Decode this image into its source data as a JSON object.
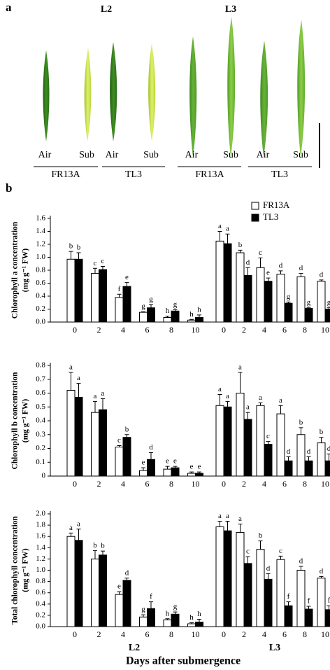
{
  "panel_a": {
    "label": "a",
    "leaf_groups": [
      "L2",
      "L3"
    ],
    "conditions": [
      "Air",
      "Sub",
      "Air",
      "Sub",
      "Air",
      "Sub",
      "Air",
      "Sub"
    ],
    "cultivars": [
      "FR13A",
      "TL3",
      "FR13A",
      "TL3"
    ]
  },
  "panel_b_label": "b",
  "chart_data": [
    {
      "type": "bar",
      "ylabel": [
        "Chlorophyll a concentration",
        "(mg g⁻¹ FW)"
      ],
      "categories": [
        "0",
        "2",
        "4",
        "6",
        "8",
        "10",
        "0",
        "2",
        "4",
        "6",
        "8",
        "10"
      ],
      "ylim": [
        0,
        1.6
      ],
      "yticks": [
        {
          "value": 0,
          "label": "0.0"
        },
        0.2,
        0.4,
        0.6,
        0.8,
        {
          "value": 1,
          "label": "1.0"
        },
        1.2,
        1.4,
        1.6
      ],
      "series": [
        {
          "name": "FR13A",
          "color": "#ffffff",
          "values": [
            0.97,
            0.75,
            0.38,
            0.15,
            0.07,
            0.03,
            1.25,
            1.07,
            0.84,
            0.74,
            0.7,
            0.63
          ],
          "errors": [
            0.12,
            0.08,
            0.05,
            0.01,
            0.02,
            0.01,
            0.15,
            0.04,
            0.15,
            0.05,
            0.05,
            0.02
          ],
          "letters": [
            "b",
            "c",
            "f",
            "g",
            "h",
            "h",
            "a",
            "b",
            "c",
            "d",
            "d",
            "d"
          ]
        },
        {
          "name": "TL3",
          "color": "#000000",
          "values": [
            0.97,
            0.81,
            0.55,
            0.22,
            0.17,
            0.07,
            1.21,
            0.72,
            0.63,
            0.29,
            0.21,
            0.2
          ],
          "errors": [
            0.1,
            0.05,
            0.06,
            0.05,
            0.02,
            0.04,
            0.15,
            0.12,
            0.05,
            0.02,
            0.01,
            0.02
          ],
          "letters": [
            "b",
            "c",
            "e",
            "g",
            "g",
            "h",
            "a",
            "d",
            "e",
            "g",
            "g",
            "g"
          ]
        }
      ]
    },
    {
      "type": "bar",
      "ylabel": [
        "Chlorophyll b concentration",
        "(mg g⁻¹ FW)"
      ],
      "categories": [
        "0",
        "2",
        "4",
        "6",
        "8",
        "10",
        "0",
        "2",
        "4",
        "6",
        "8",
        "10"
      ],
      "ylim": [
        0,
        0.8
      ],
      "yticks": [
        0,
        0.1,
        0.2,
        0.3,
        0.4,
        0.5,
        0.6,
        0.7,
        0.8
      ],
      "series": [
        {
          "color": "#ffffff",
          "values": [
            0.62,
            0.46,
            0.21,
            0.04,
            0.05,
            0.02,
            0.51,
            0.6,
            0.51,
            0.45,
            0.3,
            0.24
          ],
          "errors": [
            0.13,
            0.08,
            0.01,
            0.02,
            0.02,
            0.01,
            0.08,
            0.15,
            0.02,
            0.06,
            0.05,
            0.04
          ],
          "letters": [
            "a",
            "a",
            "c",
            "e",
            "e",
            "e",
            "a",
            "a",
            "a",
            "a",
            "b",
            "b"
          ]
        },
        {
          "color": "#000000",
          "values": [
            0.57,
            0.48,
            0.28,
            0.12,
            0.06,
            0.02,
            0.5,
            0.41,
            0.23,
            0.11,
            0.11,
            0.11
          ],
          "errors": [
            0.1,
            0.08,
            0.02,
            0.05,
            0.01,
            0.01,
            0.04,
            0.05,
            0.02,
            0.03,
            0.03,
            0.05
          ],
          "letters": [
            "a",
            "a",
            "b",
            "d",
            "e",
            "e",
            "a",
            "a",
            "c",
            "d",
            "d",
            "d"
          ]
        }
      ]
    },
    {
      "type": "bar",
      "ylabel": [
        "Total chlorophyll concentration",
        "(mg g⁻¹ FW)"
      ],
      "categories": [
        "0",
        "2",
        "4",
        "6",
        "8",
        "10",
        "0",
        "2",
        "4",
        "6",
        "8",
        "10"
      ],
      "groups": [
        "L2",
        "L3"
      ],
      "xlabel": "Days after submergence",
      "ylim": [
        0,
        2
      ],
      "yticks": [
        {
          "value": 0,
          "label": "0.0"
        },
        0.2,
        0.4,
        0.6,
        0.8,
        {
          "value": 1,
          "label": "1.0"
        },
        1.2,
        1.4,
        1.6,
        1.8,
        {
          "value": 2,
          "label": "2.0"
        }
      ],
      "series": [
        {
          "color": "#ffffff",
          "values": [
            1.6,
            1.2,
            0.57,
            0.17,
            0.12,
            0.05,
            1.77,
            1.67,
            1.37,
            1.19,
            1.0,
            0.86
          ],
          "errors": [
            0.06,
            0.15,
            0.05,
            0.04,
            0.02,
            0.02,
            0.1,
            0.15,
            0.15,
            0.06,
            0.07,
            0.03
          ],
          "letters": [
            "a",
            "b",
            "e",
            "g",
            "h",
            "h",
            "a",
            "a",
            "b",
            "c",
            "d",
            "d"
          ]
        },
        {
          "color": "#000000",
          "values": [
            1.53,
            1.27,
            0.82,
            0.32,
            0.22,
            0.08,
            1.7,
            1.12,
            0.84,
            0.37,
            0.31,
            0.3
          ],
          "errors": [
            0.2,
            0.07,
            0.04,
            0.12,
            0.04,
            0.05,
            0.17,
            0.12,
            0.1,
            0.07,
            0.05,
            0.07
          ],
          "letters": [
            "a",
            "b",
            "d",
            "f",
            "g",
            "h",
            "a",
            "c",
            "d",
            "f",
            "f",
            "f"
          ]
        }
      ]
    }
  ]
}
